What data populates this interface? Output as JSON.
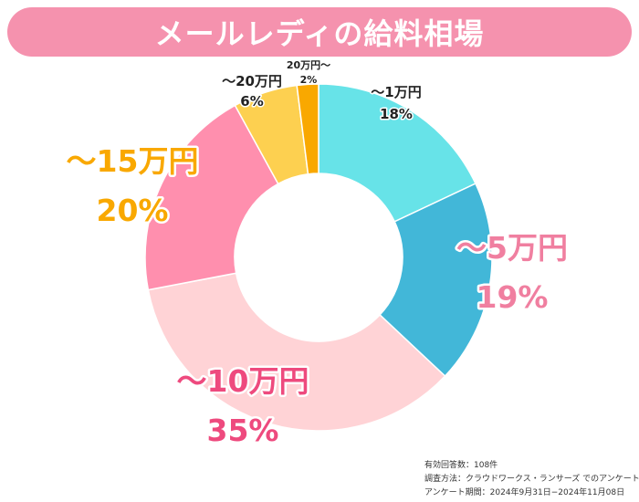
{
  "title": "メールレディの給料相場",
  "chart_data": {
    "type": "pie",
    "donut": true,
    "start_angle_deg": 0,
    "direction": "clockwise",
    "legend": "none",
    "slices": [
      {
        "label": "〜1万円",
        "value": 18,
        "value_label": "18%",
        "color": "#67e3e8"
      },
      {
        "label": "〜5万円",
        "value": 19,
        "value_label": "19%",
        "color": "#42b7d8"
      },
      {
        "label": "〜10万円",
        "value": 35,
        "value_label": "35%",
        "color": "#ffd3d6"
      },
      {
        "label": "〜15万円",
        "value": 20,
        "value_label": "20%",
        "color": "#ff8fae"
      },
      {
        "label": "〜20万円",
        "value": 6,
        "value_label": "6%",
        "color": "#fdd050"
      },
      {
        "label": "20万円〜",
        "value": 2,
        "value_label": "2%",
        "color": "#f9a800"
      }
    ]
  },
  "label_colors": {
    "〜5万円": "#f07fa0",
    "〜10万円": "#ee4a7e",
    "〜15万円": "#f9a800"
  },
  "footnote": {
    "line1": "有効回答数：108件",
    "line2": "調査方法：クラウドワークス・ランサーズ でのアンケート",
    "line3": "アンケート期間：2024年9月31日−2024年11月08日"
  }
}
